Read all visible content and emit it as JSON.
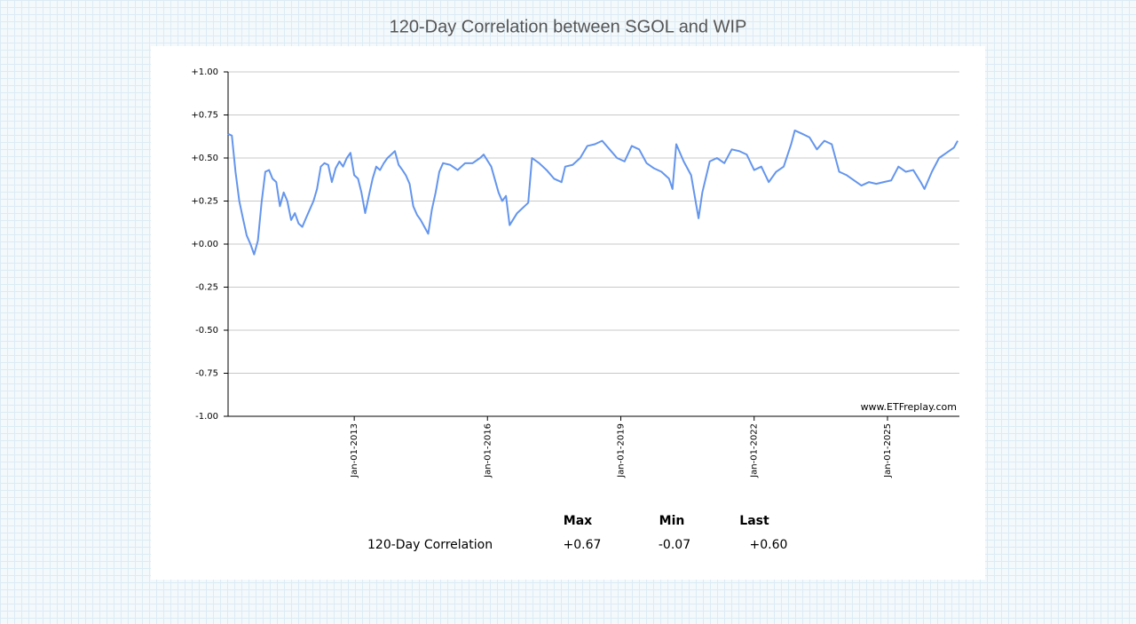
{
  "chart_data": {
    "type": "line",
    "title": "120-Day Correlation between SGOL and WIP",
    "watermark": "www.ETFreplay.com",
    "color": "#6495ed",
    "grid": true,
    "ylim": [
      -1,
      1
    ],
    "yticks": [
      {
        "value": 1,
        "label": "+1.00"
      },
      {
        "value": 0.75,
        "label": "+0.75"
      },
      {
        "value": 0.5,
        "label": "+0.50"
      },
      {
        "value": 0.25,
        "label": "+0.25"
      },
      {
        "value": 0,
        "label": "+0.00"
      },
      {
        "value": -0.25,
        "label": "-0.25"
      },
      {
        "value": -0.5,
        "label": "-0.50"
      },
      {
        "value": -0.75,
        "label": "-0.75"
      },
      {
        "value": -1,
        "label": "-1.00"
      }
    ],
    "xlim": [
      "2010-03-01",
      "2026-08-15"
    ],
    "xticks": [
      {
        "value": "2013-01-01",
        "label": "Jan-01-2013"
      },
      {
        "value": "2016-01-01",
        "label": "Jan-01-2016"
      },
      {
        "value": "2019-01-01",
        "label": "Jan-01-2019"
      },
      {
        "value": "2022-01-01",
        "label": "Jan-01-2022"
      },
      {
        "value": "2025-01-01",
        "label": "Jan-01-2025"
      }
    ],
    "x": [
      "2010-03-01",
      "2010-04-01",
      "2010-05-01",
      "2010-06-01",
      "2010-07-01",
      "2010-08-01",
      "2010-09-01",
      "2010-10-01",
      "2010-11-01",
      "2010-12-01",
      "2011-01-01",
      "2011-02-01",
      "2011-03-01",
      "2011-04-01",
      "2011-05-01",
      "2011-06-01",
      "2011-07-01",
      "2011-08-01",
      "2011-09-01",
      "2011-10-01",
      "2011-11-01",
      "2011-12-01",
      "2012-01-01",
      "2012-02-01",
      "2012-03-01",
      "2012-04-01",
      "2012-05-01",
      "2012-06-01",
      "2012-07-01",
      "2012-08-01",
      "2012-09-01",
      "2012-10-01",
      "2012-11-01",
      "2012-12-01",
      "2013-01-01",
      "2013-02-01",
      "2013-03-01",
      "2013-04-01",
      "2013-05-01",
      "2013-06-01",
      "2013-07-01",
      "2013-08-01",
      "2013-09-01",
      "2013-10-01",
      "2013-11-01",
      "2013-12-01",
      "2014-01-01",
      "2014-02-01",
      "2014-03-01",
      "2014-04-01",
      "2014-05-01",
      "2014-06-01",
      "2014-07-01",
      "2014-08-01",
      "2014-09-01",
      "2014-10-01",
      "2014-11-01",
      "2014-12-01",
      "2015-01-01",
      "2015-03-01",
      "2015-05-01",
      "2015-07-01",
      "2015-09-01",
      "2015-11-01",
      "2015-12-01",
      "2016-02-01",
      "2016-04-01",
      "2016-05-01",
      "2016-06-01",
      "2016-07-01",
      "2016-09-01",
      "2016-11-01",
      "2016-12-01",
      "2017-01-01",
      "2017-03-01",
      "2017-05-01",
      "2017-07-01",
      "2017-09-01",
      "2017-10-01",
      "2017-12-01",
      "2018-02-01",
      "2018-04-01",
      "2018-06-01",
      "2018-08-01",
      "2018-10-01",
      "2018-12-01",
      "2019-02-01",
      "2019-04-01",
      "2019-06-01",
      "2019-08-01",
      "2019-10-01",
      "2019-12-01",
      "2020-02-01",
      "2020-03-01",
      "2020-04-01",
      "2020-06-01",
      "2020-08-01",
      "2020-10-01",
      "2020-11-01",
      "2021-01-01",
      "2021-03-01",
      "2021-05-01",
      "2021-07-01",
      "2021-09-01",
      "2021-11-01",
      "2022-01-01",
      "2022-03-01",
      "2022-05-01",
      "2022-07-01",
      "2022-09-01",
      "2022-11-01",
      "2022-12-01",
      "2023-02-01",
      "2023-04-01",
      "2023-06-01",
      "2023-08-01",
      "2023-10-01",
      "2023-12-01",
      "2024-02-01",
      "2024-04-01",
      "2024-06-01",
      "2024-08-01",
      "2024-10-01",
      "2024-12-01",
      "2025-02-01",
      "2025-04-01",
      "2025-06-01",
      "2025-08-01",
      "2025-10-01",
      "2025-11-01",
      "2026-01-01",
      "2026-03-01",
      "2026-05-01",
      "2026-07-01",
      "2026-08-01"
    ],
    "values": [
      0.64,
      0.63,
      0.42,
      0.25,
      0.15,
      0.05,
      0.0,
      -0.06,
      0.02,
      0.24,
      0.42,
      0.43,
      0.38,
      0.36,
      0.22,
      0.3,
      0.25,
      0.14,
      0.18,
      0.12,
      0.1,
      0.15,
      0.2,
      0.25,
      0.32,
      0.45,
      0.47,
      0.46,
      0.36,
      0.44,
      0.48,
      0.45,
      0.5,
      0.53,
      0.4,
      0.38,
      0.3,
      0.18,
      0.28,
      0.38,
      0.45,
      0.43,
      0.47,
      0.5,
      0.52,
      0.54,
      0.46,
      0.43,
      0.4,
      0.35,
      0.22,
      0.17,
      0.14,
      0.1,
      0.06,
      0.2,
      0.3,
      0.42,
      0.47,
      0.46,
      0.43,
      0.47,
      0.47,
      0.5,
      0.52,
      0.45,
      0.3,
      0.25,
      0.28,
      0.11,
      0.18,
      0.22,
      0.24,
      0.5,
      0.47,
      0.43,
      0.38,
      0.36,
      0.45,
      0.46,
      0.5,
      0.57,
      0.58,
      0.6,
      0.55,
      0.5,
      0.48,
      0.57,
      0.55,
      0.47,
      0.44,
      0.42,
      0.38,
      0.32,
      0.58,
      0.48,
      0.4,
      0.15,
      0.3,
      0.48,
      0.5,
      0.47,
      0.55,
      0.54,
      0.52,
      0.43,
      0.45,
      0.36,
      0.42,
      0.45,
      0.58,
      0.66,
      0.64,
      0.62,
      0.55,
      0.6,
      0.58,
      0.42,
      0.4,
      0.37,
      0.34,
      0.36,
      0.35,
      0.36,
      0.37,
      0.45,
      0.42,
      0.43,
      0.36,
      0.32,
      0.42,
      0.5,
      0.53,
      0.56,
      0.6
    ]
  },
  "stats": {
    "headers": [
      "Max",
      "Min",
      "Last"
    ],
    "row_label": "120-Day Correlation",
    "cells": [
      "+0.67",
      "-0.07",
      "+0.60"
    ]
  }
}
